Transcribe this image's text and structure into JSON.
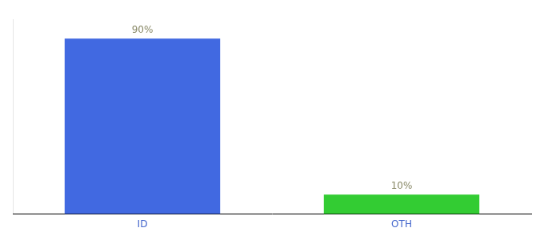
{
  "chart_data": {
    "type": "bar",
    "categories": [
      "ID",
      "OTH"
    ],
    "values": [
      90,
      10
    ],
    "value_labels": [
      "90%",
      "10%"
    ],
    "data_labels": true,
    "colors": [
      "#4169e1",
      "#33cc33"
    ],
    "ylim": [
      0,
      100
    ],
    "grid": false,
    "tick_labels": "x"
  }
}
